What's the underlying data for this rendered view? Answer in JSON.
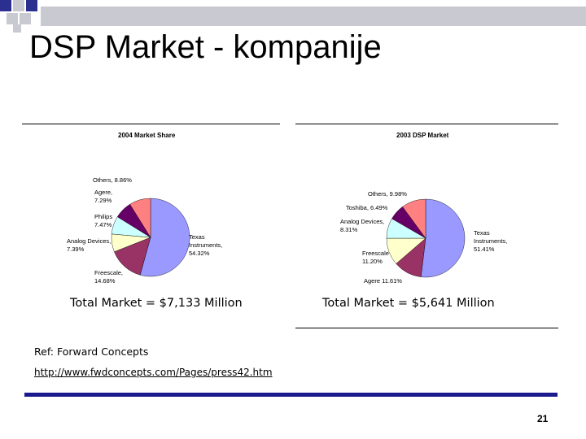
{
  "slide": {
    "title": "DSP Market - kompanije",
    "ref": "Ref: Forward Concepts",
    "url": "http://www.fwdconcepts.com/Pages/press42.htm",
    "page_number": "21"
  },
  "colors": {
    "deco_navy": "#2b2f8f",
    "deco_gray": "#c9c9d2",
    "bar_navy": "#1c1a8f"
  },
  "totals": {
    "left": "Total Market = $7,133 Million",
    "right": "Total Market = $5,641 Million"
  },
  "chart_data": [
    {
      "type": "pie",
      "title": "2004 Market Share",
      "slices": [
        {
          "name": "Texas Instruments",
          "label": [
            "Texas",
            "Instruments,",
            "54.32%"
          ],
          "value": 54.32,
          "color": "#9999ff"
        },
        {
          "name": "Freescale",
          "label": [
            "Freescale,",
            "14.68%"
          ],
          "value": 14.68,
          "color": "#993366"
        },
        {
          "name": "Analog Devices",
          "label": [
            "Analog Devices,",
            "7.39%"
          ],
          "value": 7.39,
          "color": "#ffffcc"
        },
        {
          "name": "Philips",
          "label": [
            "Philips",
            "7.47%"
          ],
          "value": 7.47,
          "color": "#ccffff"
        },
        {
          "name": "Agere",
          "label": [
            "Agere,",
            "7.29%"
          ],
          "value": 7.29,
          "color": "#660066"
        },
        {
          "name": "Others",
          "label": [
            "Others, 8.86%"
          ],
          "value": 8.86,
          "color": "#ff8080"
        }
      ]
    },
    {
      "type": "pie",
      "title": "2003 DSP Market",
      "slices": [
        {
          "name": "Texas Instruments",
          "label": [
            "Texas",
            "Instruments,",
            "51.41%"
          ],
          "value": 51.41,
          "color": "#9999ff"
        },
        {
          "name": "Agere",
          "label": [
            "Agere 11.61%"
          ],
          "value": 11.61,
          "color": "#993366"
        },
        {
          "name": "Freescale",
          "label": [
            "Freescale",
            "11.20%"
          ],
          "value": 11.2,
          "color": "#ffffcc"
        },
        {
          "name": "Analog Devices",
          "label": [
            "Analog Devices,",
            "8.31%"
          ],
          "value": 8.31,
          "color": "#ccffff"
        },
        {
          "name": "Toshiba",
          "label": [
            "Toshiba, 6.49%"
          ],
          "value": 6.49,
          "color": "#660066"
        },
        {
          "name": "Others",
          "label": [
            "Others, 9.98%"
          ],
          "value": 9.98,
          "color": "#ff8080"
        }
      ]
    }
  ]
}
